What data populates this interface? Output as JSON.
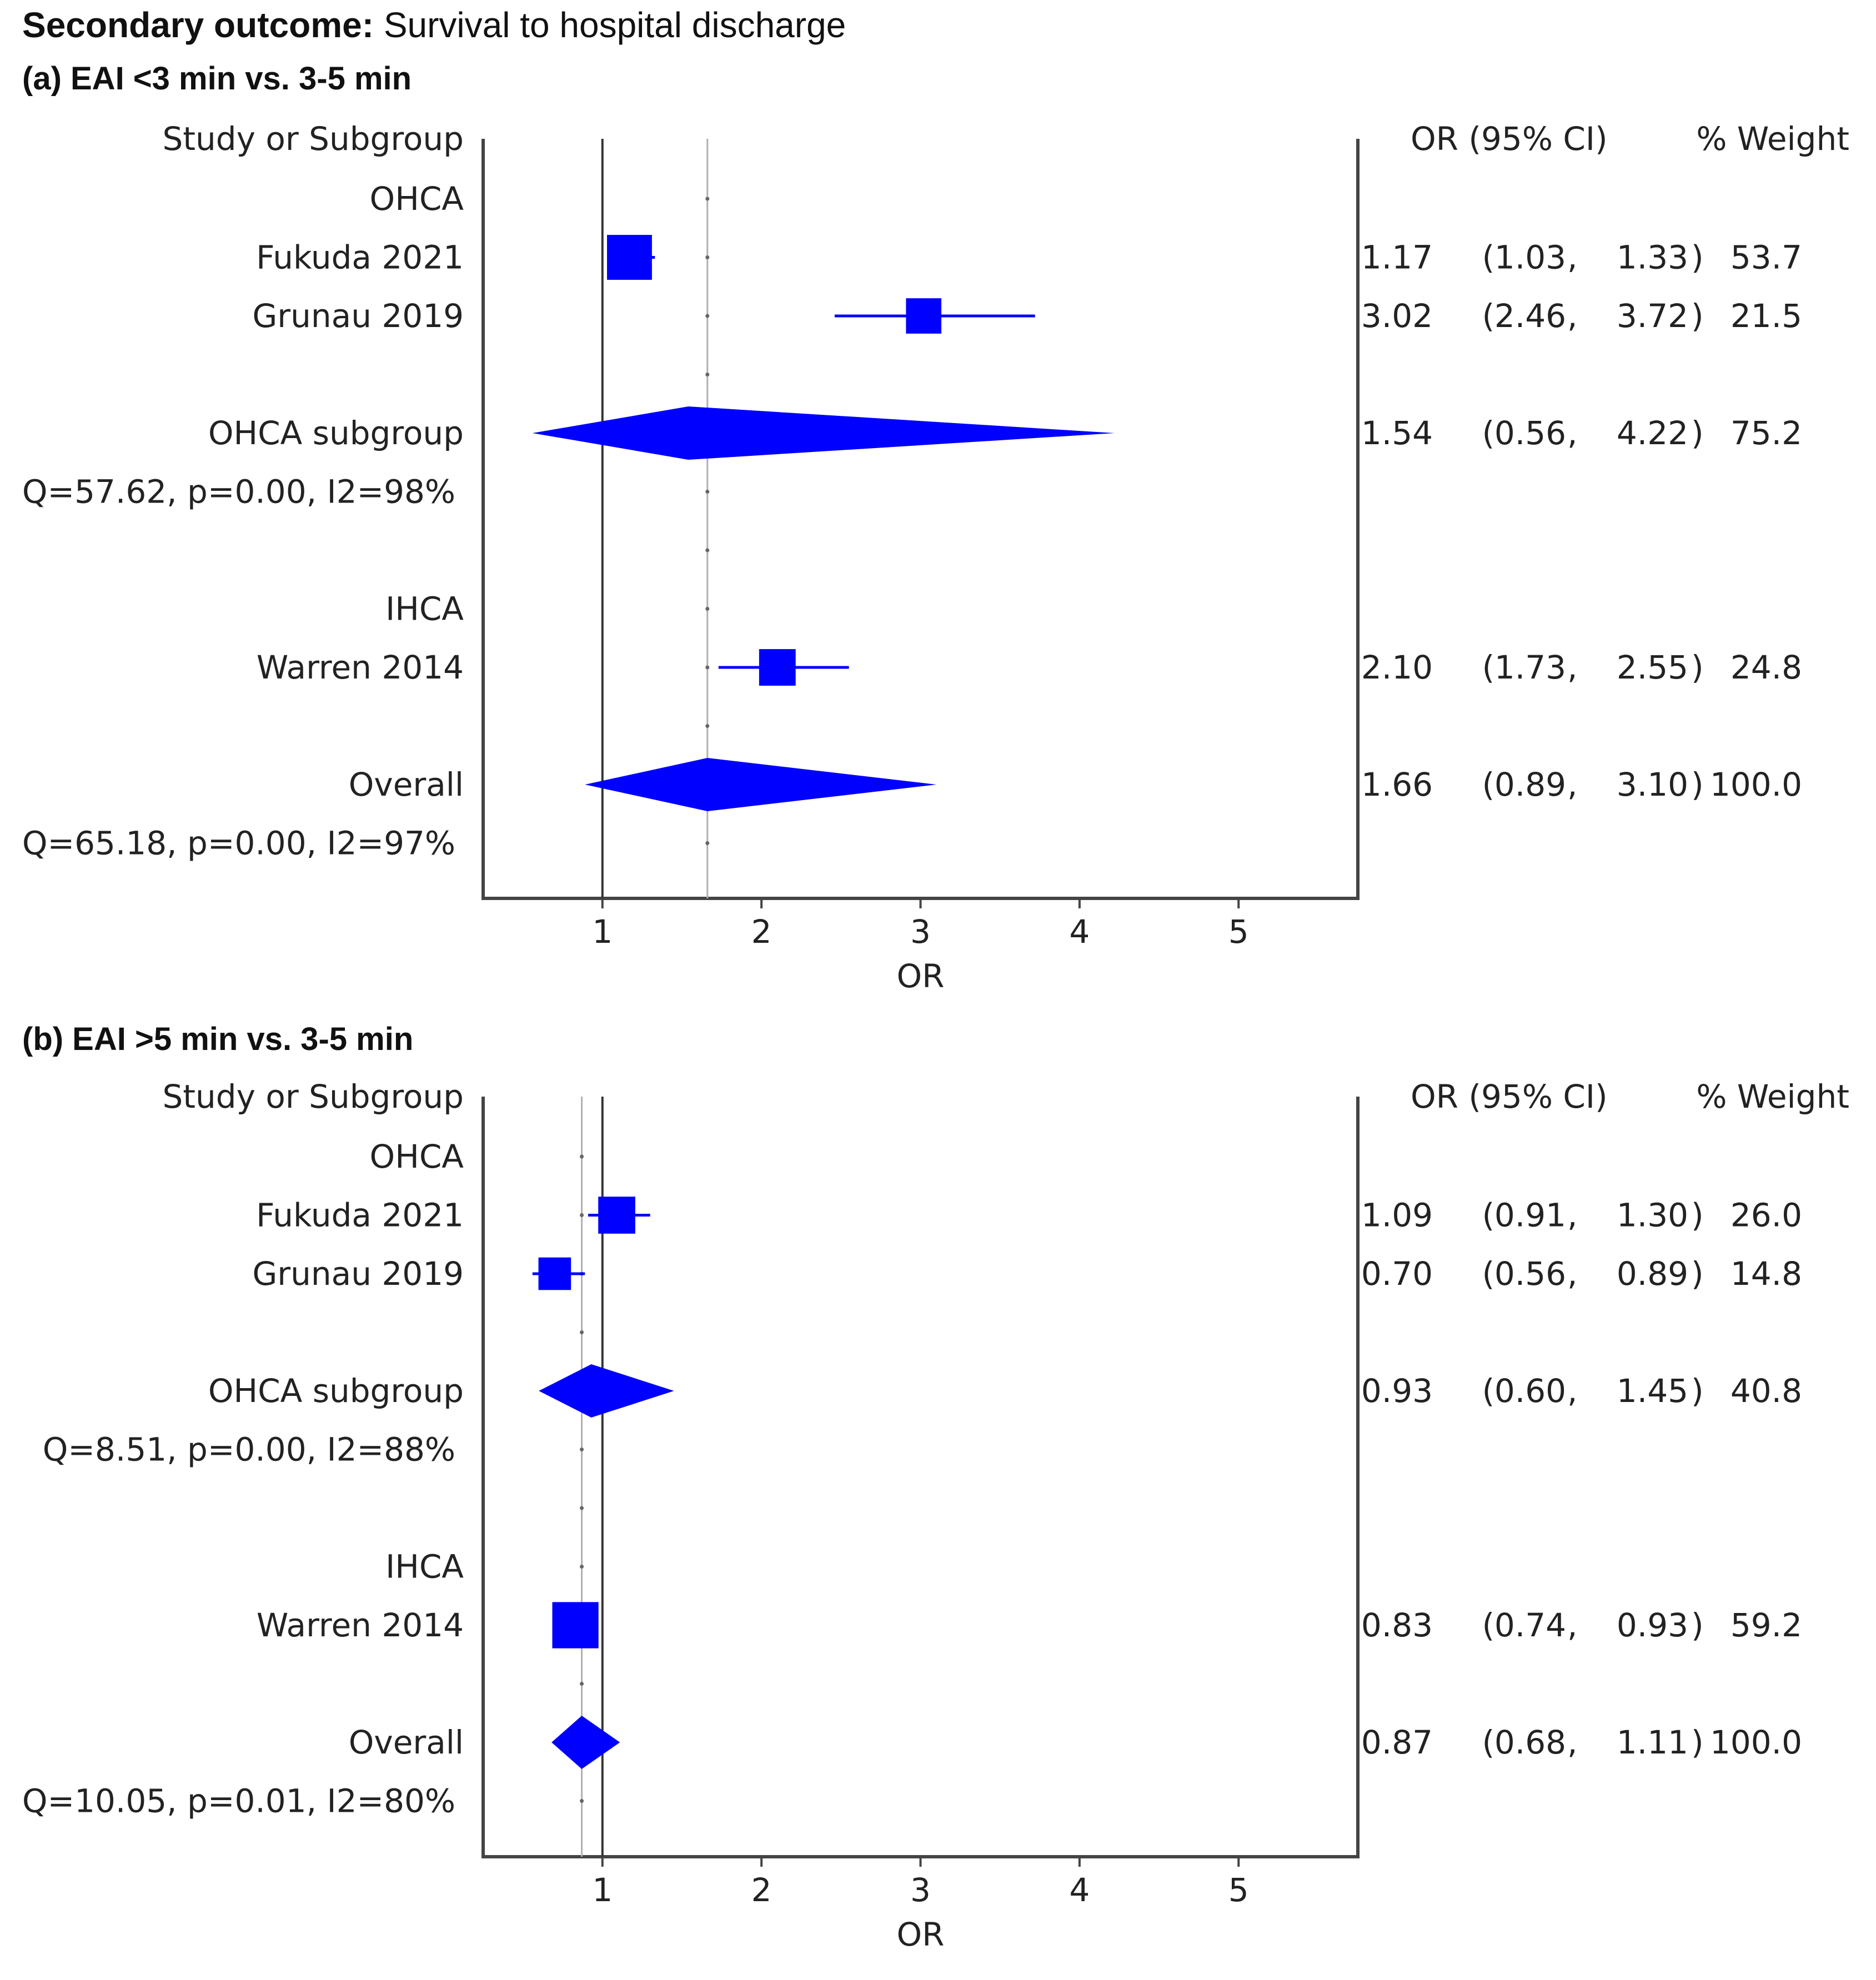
{
  "page": {
    "title_bold": "Secondary outcome:",
    "title_rest": " Survival to hospital discharge"
  },
  "columns": {
    "study": "Study or Subgroup",
    "ci": "OR (95% CI)",
    "weight": "% Weight"
  },
  "colors": {
    "marker": "#0000ff",
    "axis": "#444444",
    "ref": "#333333",
    "pooled": "#b0b0b0"
  },
  "chart_data": [
    {
      "type": "forest",
      "title": "(a) EAI <3 min vs. 3-5 min",
      "xlabel": "OR",
      "xlim": [
        0.25,
        5.75
      ],
      "xticks": [
        1,
        2,
        3,
        4,
        5
      ],
      "null_line": 1,
      "pooled_line": 1.66,
      "rows": [
        {
          "kind": "header",
          "label": "OHCA"
        },
        {
          "kind": "study",
          "label": "Fukuda 2021",
          "or": 1.17,
          "lo": 1.03,
          "hi": 1.33,
          "or_text": "1.17",
          "lo_text": "1.03",
          "hi_text": "1.33",
          "weight": "53.7",
          "w": 53.7
        },
        {
          "kind": "study",
          "label": "Grunau 2019",
          "or": 3.02,
          "lo": 2.46,
          "hi": 3.72,
          "or_text": "3.02",
          "lo_text": "2.46",
          "hi_text": "3.72",
          "weight": "21.5",
          "w": 21.5
        },
        {
          "kind": "blank"
        },
        {
          "kind": "pooled",
          "label": "OHCA subgroup",
          "or": 1.54,
          "lo": 0.56,
          "hi": 4.22,
          "or_text": "1.54",
          "lo_text": "0.56",
          "hi_text": "4.22",
          "weight": "75.2"
        },
        {
          "kind": "het",
          "label": "Q=57.62, p=0.00, I2=98%"
        },
        {
          "kind": "blank"
        },
        {
          "kind": "header",
          "label": "IHCA"
        },
        {
          "kind": "study",
          "label": "Warren 2014",
          "or": 2.1,
          "lo": 1.73,
          "hi": 2.55,
          "or_text": "2.10",
          "lo_text": "1.73",
          "hi_text": "2.55",
          "weight": "24.8",
          "w": 24.8
        },
        {
          "kind": "blank"
        },
        {
          "kind": "pooled",
          "label": "Overall",
          "or": 1.66,
          "lo": 0.89,
          "hi": 3.1,
          "or_text": "1.66",
          "lo_text": "0.89",
          "hi_text": "3.10",
          "weight": "100.0"
        },
        {
          "kind": "het",
          "label": "Q=65.18, p=0.00, I2=97%"
        }
      ]
    },
    {
      "type": "forest",
      "title": "(b) EAI >5 min vs. 3-5 min",
      "xlabel": "OR",
      "xlim": [
        0.25,
        5.75
      ],
      "xticks": [
        1,
        2,
        3,
        4,
        5
      ],
      "null_line": 1,
      "pooled_line": 0.87,
      "rows": [
        {
          "kind": "header",
          "label": "OHCA"
        },
        {
          "kind": "study",
          "label": "Fukuda 2021",
          "or": 1.09,
          "lo": 0.91,
          "hi": 1.3,
          "or_text": "1.09",
          "lo_text": "0.91",
          "hi_text": "1.30",
          "weight": "26.0",
          "w": 26.0
        },
        {
          "kind": "study",
          "label": "Grunau 2019",
          "or": 0.7,
          "lo": 0.56,
          "hi": 0.89,
          "or_text": "0.70",
          "lo_text": "0.56",
          "hi_text": "0.89",
          "weight": "14.8",
          "w": 14.8
        },
        {
          "kind": "blank"
        },
        {
          "kind": "pooled",
          "label": "OHCA subgroup",
          "or": 0.93,
          "lo": 0.6,
          "hi": 1.45,
          "or_text": "0.93",
          "lo_text": "0.60",
          "hi_text": "1.45",
          "weight": "40.8"
        },
        {
          "kind": "het",
          "label": "Q=8.51, p=0.00, I2=88%"
        },
        {
          "kind": "blank"
        },
        {
          "kind": "header",
          "label": "IHCA"
        },
        {
          "kind": "study",
          "label": "Warren 2014",
          "or": 0.83,
          "lo": 0.74,
          "hi": 0.93,
          "or_text": "0.83",
          "lo_text": "0.74",
          "hi_text": "0.93",
          "weight": "59.2",
          "w": 59.2
        },
        {
          "kind": "blank"
        },
        {
          "kind": "pooled",
          "label": "Overall",
          "or": 0.87,
          "lo": 0.68,
          "hi": 1.11,
          "or_text": "0.87",
          "lo_text": "0.68",
          "hi_text": "1.11",
          "weight": "100.0"
        },
        {
          "kind": "het",
          "label": "Q=10.05, p=0.01, I2=80%"
        }
      ]
    }
  ]
}
